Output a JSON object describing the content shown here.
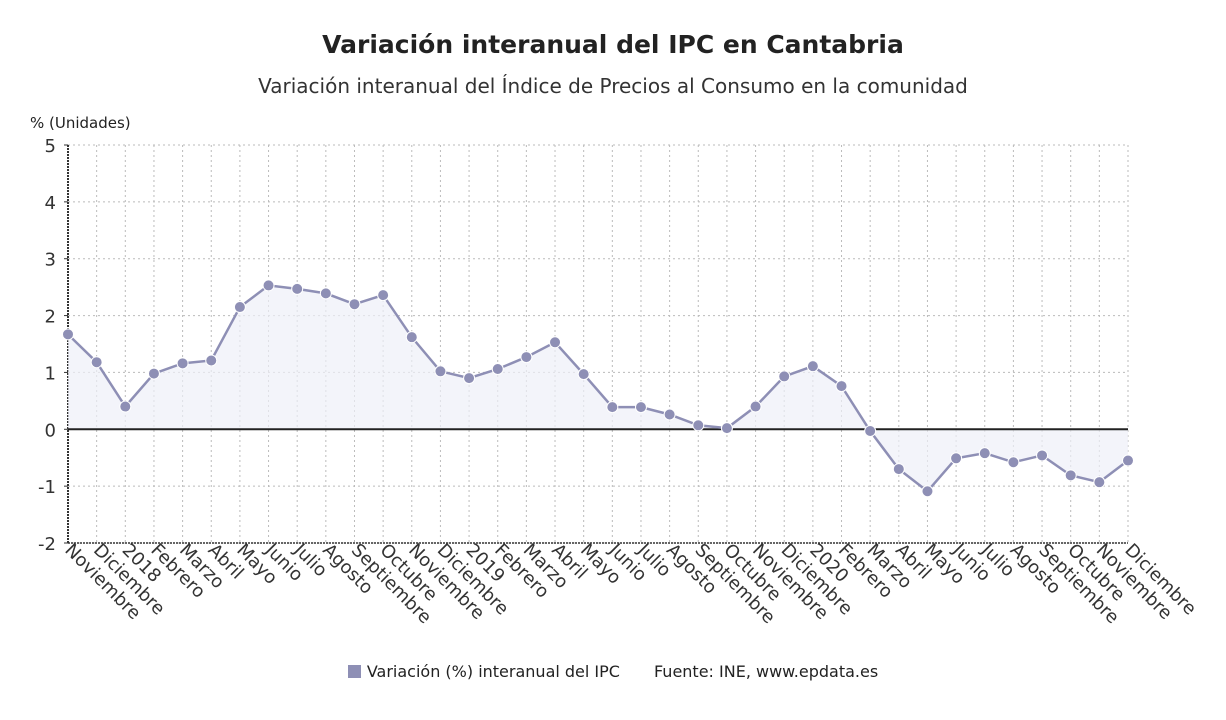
{
  "chart_data": {
    "type": "line",
    "title": "Variación interanual del IPC en Cantabria",
    "subtitle": "Variación interanual del Índice de Precios al Consumo en la comunidad",
    "ylabel": "% (Unidades)",
    "xlabel": "",
    "ylim": [
      -2,
      5
    ],
    "yticks": [
      5,
      4,
      3,
      2,
      1,
      0,
      -1,
      -2
    ],
    "grid": true,
    "legend_placement": "bottom",
    "categories": [
      "Noviembre",
      "Diciembre",
      "2018",
      "Febrero",
      "Marzo",
      "Abril",
      "Mayo",
      "Junio",
      "Julio",
      "Agosto",
      "Septiembre",
      "Octubre",
      "Noviembre",
      "Diciembre",
      "2019",
      "Febrero",
      "Marzo",
      "Abril",
      "Mayo",
      "Junio",
      "Julio",
      "Agosto",
      "Septiembre",
      "Octubre",
      "Noviembre",
      "Diciembre",
      "2020",
      "Febrero",
      "Marzo",
      "Abril",
      "Mayo",
      "Junio",
      "Julio",
      "Agosto",
      "Septiembre",
      "Octubre",
      "Noviembre",
      "Diciembre"
    ],
    "series": [
      {
        "name": "Variación (%) interanual del IPC",
        "color": "#8e8fb5",
        "values": [
          1.67,
          1.18,
          0.4,
          0.98,
          1.16,
          1.21,
          2.15,
          2.53,
          2.47,
          2.39,
          2.2,
          2.36,
          1.62,
          1.02,
          0.9,
          1.06,
          1.27,
          1.53,
          0.97,
          0.39,
          0.39,
          0.26,
          0.07,
          0.02,
          0.4,
          0.93,
          1.11,
          0.76,
          -0.03,
          -0.7,
          -1.09,
          -0.51,
          -0.42,
          -0.58,
          -0.46,
          -0.81,
          -0.93,
          -0.55
        ]
      }
    ],
    "source": "Fuente: INE, www.epdata.es"
  }
}
